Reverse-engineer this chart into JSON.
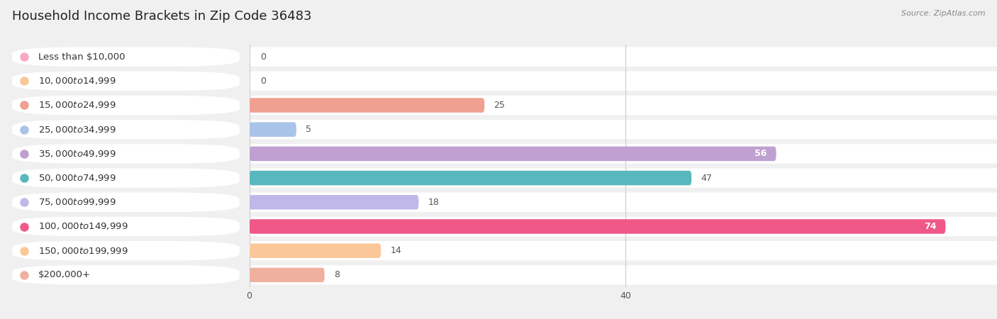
{
  "title": "Household Income Brackets in Zip Code 36483",
  "source": "Source: ZipAtlas.com",
  "categories": [
    "Less than $10,000",
    "$10,000 to $14,999",
    "$15,000 to $24,999",
    "$25,000 to $34,999",
    "$35,000 to $49,999",
    "$50,000 to $74,999",
    "$75,000 to $99,999",
    "$100,000 to $149,999",
    "$150,000 to $199,999",
    "$200,000+"
  ],
  "values": [
    0,
    0,
    25,
    5,
    56,
    47,
    18,
    74,
    14,
    8
  ],
  "bar_colors": [
    "#F8A8BF",
    "#FAC898",
    "#F0A090",
    "#A8C4E8",
    "#C0A0D0",
    "#58B8BE",
    "#C0B8E8",
    "#F05888",
    "#FAC898",
    "#F0B0A0"
  ],
  "bg_color": "#f0f0f0",
  "xlim": [
    0,
    80
  ],
  "xticks": [
    0,
    40,
    80
  ],
  "title_fontsize": 13,
  "label_fontsize": 9.5,
  "value_fontsize": 9
}
